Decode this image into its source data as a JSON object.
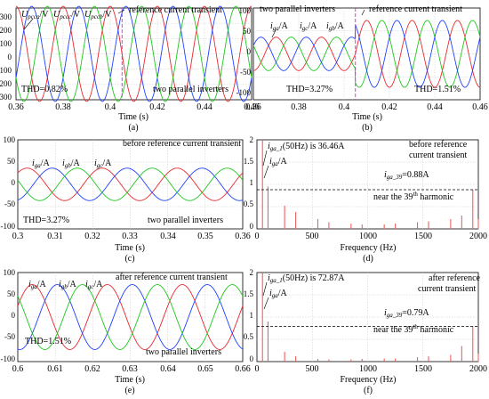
{
  "chart_data": [
    {
      "id": "a",
      "type": "line",
      "caption": "(a)",
      "xlabel": "Time (s)",
      "xlim": [
        0.36,
        0.46
      ],
      "ylim": [
        -300,
        300
      ],
      "xticks": [
        "0.36",
        "0.38",
        "0.4",
        "0.42",
        "0.44",
        "0.46"
      ],
      "yticks": [
        "-300",
        "-200",
        "-100",
        "0",
        "100",
        "200",
        "300"
      ],
      "waves": {
        "freq_hz": 50,
        "amplitude": 311,
        "phase_deg": 90,
        "order": [
          "red",
          "blue",
          "green"
        ]
      },
      "transient_x": 0.405,
      "annotations": [
        "U",
        "pcca",
        "/V",
        "U",
        "pccc",
        "/V",
        "U",
        "pccb",
        "/V",
        "reference current transient",
        "THD=0.82%",
        "two parallel inverters"
      ]
    },
    {
      "id": "b",
      "type": "line",
      "caption": "(b)",
      "xlabel": "Time (s)",
      "xlim": [
        0.36,
        0.46
      ],
      "ylim": [
        -100,
        100
      ],
      "xticks": [
        "0.36",
        "0.38",
        "0.4",
        "0.42",
        "0.44",
        "0.46"
      ],
      "yticks": [
        "-100",
        "-50",
        "0",
        "50",
        "100"
      ],
      "waves": {
        "freq_hz": 50,
        "amplitude_before": 36.46,
        "amplitude_after": 72.87,
        "phase_deg": -90,
        "order": [
          "red",
          "green",
          "blue"
        ]
      },
      "transient_x": 0.405,
      "annotations": [
        "two parallel inverters",
        "i",
        "ga",
        "/A",
        "i",
        "gc",
        "/A",
        "i",
        "gb",
        "/A",
        "reference current transient",
        "THD=3.27%",
        "THD=1.51%"
      ]
    },
    {
      "id": "c",
      "type": "line",
      "caption": "(c)",
      "xlabel": "Time (s)",
      "xlim": [
        0.3,
        0.36
      ],
      "ylim": [
        -100,
        100
      ],
      "xticks": [
        "0.3",
        "0.31",
        "0.32",
        "0.33",
        "0.34",
        "0.35",
        "0.36"
      ],
      "yticks": [
        "-100",
        "-50",
        "0",
        "50",
        "100"
      ],
      "waves": {
        "freq_hz": 50,
        "amplitude": 36.46,
        "phase_deg": 45,
        "order": [
          "red",
          "blue",
          "green"
        ]
      },
      "annotations": [
        "before reference current transient",
        "i",
        "ga",
        "/A",
        "i",
        "gb",
        "/A",
        "i",
        "gc",
        "/A",
        "THD=3.27%",
        "two parallel inverters"
      ]
    },
    {
      "id": "d",
      "type": "bar",
      "caption": "(d)",
      "xlabel": "Frequency (Hz)",
      "xlim": [
        0,
        2000
      ],
      "ylim": [
        0,
        2
      ],
      "xticks": [
        "0",
        "500",
        "1000",
        "1500",
        "2000"
      ],
      "yticks": [
        "0",
        "0.5",
        "1",
        "1.5",
        "2"
      ],
      "harmonics": [
        {
          "freq": 50,
          "mag": 2.0
        },
        {
          "freq": 100,
          "mag": 0.95
        },
        {
          "freq": 250,
          "mag": 0.52
        },
        {
          "freq": 350,
          "mag": 0.38
        },
        {
          "freq": 550,
          "mag": 0.22
        },
        {
          "freq": 650,
          "mag": 0.15
        },
        {
          "freq": 850,
          "mag": 0.12
        },
        {
          "freq": 950,
          "mag": 0.1
        },
        {
          "freq": 1150,
          "mag": 0.1
        },
        {
          "freq": 1250,
          "mag": 0.12
        },
        {
          "freq": 1450,
          "mag": 0.15
        },
        {
          "freq": 1550,
          "mag": 0.17
        },
        {
          "freq": 1750,
          "mag": 0.22
        },
        {
          "freq": 1850,
          "mag": 0.3
        },
        {
          "freq": 1950,
          "mag": 0.88
        },
        {
          "freq": 2000,
          "mag": 0.22
        }
      ],
      "ref_level": 0.88,
      "annotations": [
        "i",
        "ga_1",
        "(50Hz) is 36.46A",
        "i",
        "ga",
        "/A",
        "before reference",
        "current transient",
        "i",
        "ga_39",
        "=0.88A",
        "near the 39",
        "th",
        " harmonic"
      ]
    },
    {
      "id": "e",
      "type": "line",
      "caption": "(e)",
      "xlabel": "Time (s)",
      "xlim": [
        0.6,
        0.66
      ],
      "ylim": [
        -100,
        100
      ],
      "xticks": [
        "0.6",
        "0.61",
        "0.62",
        "0.63",
        "0.64",
        "0.65",
        "0.66"
      ],
      "yticks": [
        "-100",
        "-50",
        "0",
        "50",
        "100"
      ],
      "waves": {
        "freq_hz": 50,
        "amplitude": 72.87,
        "phase_deg": 20,
        "order": [
          "red",
          "blue",
          "green"
        ]
      },
      "annotations": [
        "i",
        "ga",
        "/A",
        "i",
        "gb",
        "/A",
        "i",
        "gc",
        "/A",
        "after reference current transient",
        "THD=1.51%",
        "two parallel inverters"
      ]
    },
    {
      "id": "f",
      "type": "bar",
      "caption": "(f)",
      "xlabel": "Frequency (Hz)",
      "xlim": [
        0,
        2000
      ],
      "ylim": [
        0,
        2
      ],
      "xticks": [
        "0",
        "500",
        "1000",
        "1500",
        "2000"
      ],
      "yticks": [
        "0",
        "0.5",
        "1",
        "1.5",
        "2"
      ],
      "harmonics": [
        {
          "freq": 50,
          "mag": 2.0
        },
        {
          "freq": 100,
          "mag": 0.9
        },
        {
          "freq": 250,
          "mag": 0.22
        },
        {
          "freq": 350,
          "mag": 0.12
        },
        {
          "freq": 550,
          "mag": 0.06
        },
        {
          "freq": 650,
          "mag": 0.05
        },
        {
          "freq": 850,
          "mag": 0.05
        },
        {
          "freq": 950,
          "mag": 0.06
        },
        {
          "freq": 1150,
          "mag": 0.07
        },
        {
          "freq": 1250,
          "mag": 0.07
        },
        {
          "freq": 1450,
          "mag": 0.1
        },
        {
          "freq": 1550,
          "mag": 0.12
        },
        {
          "freq": 1750,
          "mag": 0.15
        },
        {
          "freq": 1850,
          "mag": 0.35
        },
        {
          "freq": 1950,
          "mag": 0.79
        },
        {
          "freq": 2000,
          "mag": 0.18
        }
      ],
      "ref_level": 0.79,
      "annotations": [
        "i",
        "ga_1",
        "(50Hz) is 72.87A",
        "i",
        "ga",
        "/A",
        "after reference",
        "current transient",
        "i",
        "ga_39",
        "=0.79A",
        "near the 39",
        "th",
        " harmonic"
      ]
    }
  ],
  "colors": {
    "red": "#e8292f",
    "green": "#1ec81e",
    "blue": "#2040ff",
    "transient": "#e020e0",
    "spectrum": "#f06060"
  }
}
